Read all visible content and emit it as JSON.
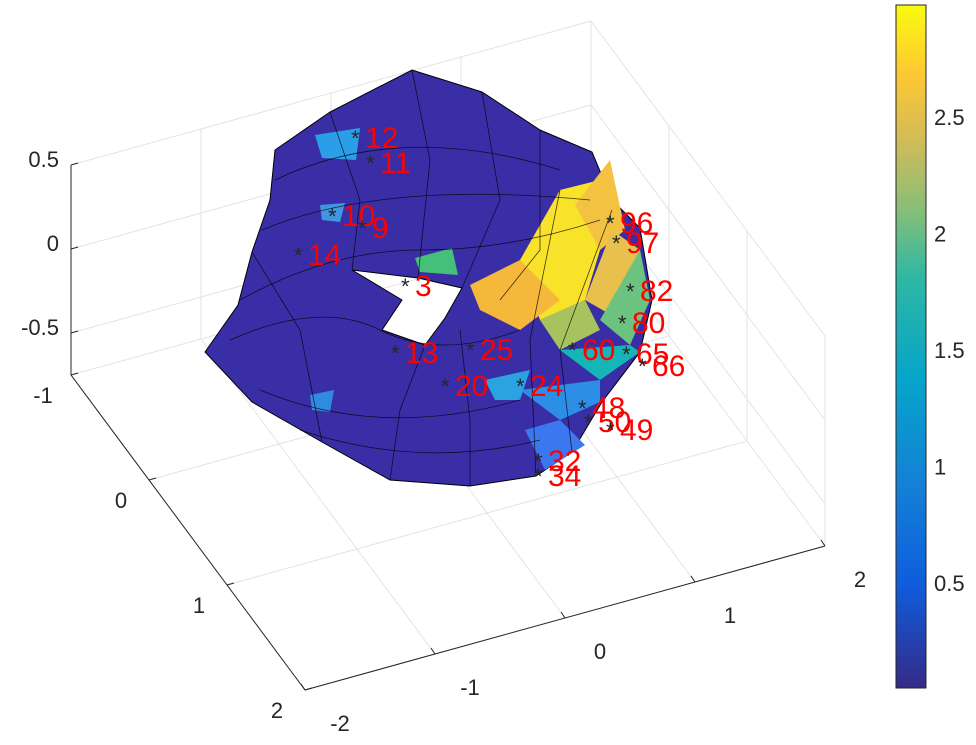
{
  "chart_data": {
    "type": "surface",
    "xlim": [
      -2,
      2
    ],
    "xticks": [
      -2,
      -1,
      0,
      1,
      2
    ],
    "ylim": [
      -1,
      2
    ],
    "yticks": [
      -1,
      0,
      1,
      2
    ],
    "zlim": [
      -0.75,
      0.5
    ],
    "zticks": [
      -0.5,
      0,
      0.5
    ],
    "grid": true,
    "colorbar": {
      "clim": [
        0.06,
        2.99
      ],
      "ticks": [
        0.5,
        1,
        1.5,
        2,
        2.5
      ]
    },
    "point_labels": [
      "12",
      "11",
      "10",
      "9",
      "14",
      "3",
      "13",
      "25",
      "20",
      "24",
      "60",
      "96",
      "97",
      "82",
      "80",
      "65",
      "66",
      "48",
      "50",
      "49",
      "32",
      "34"
    ],
    "label_color": "#ff0000"
  }
}
